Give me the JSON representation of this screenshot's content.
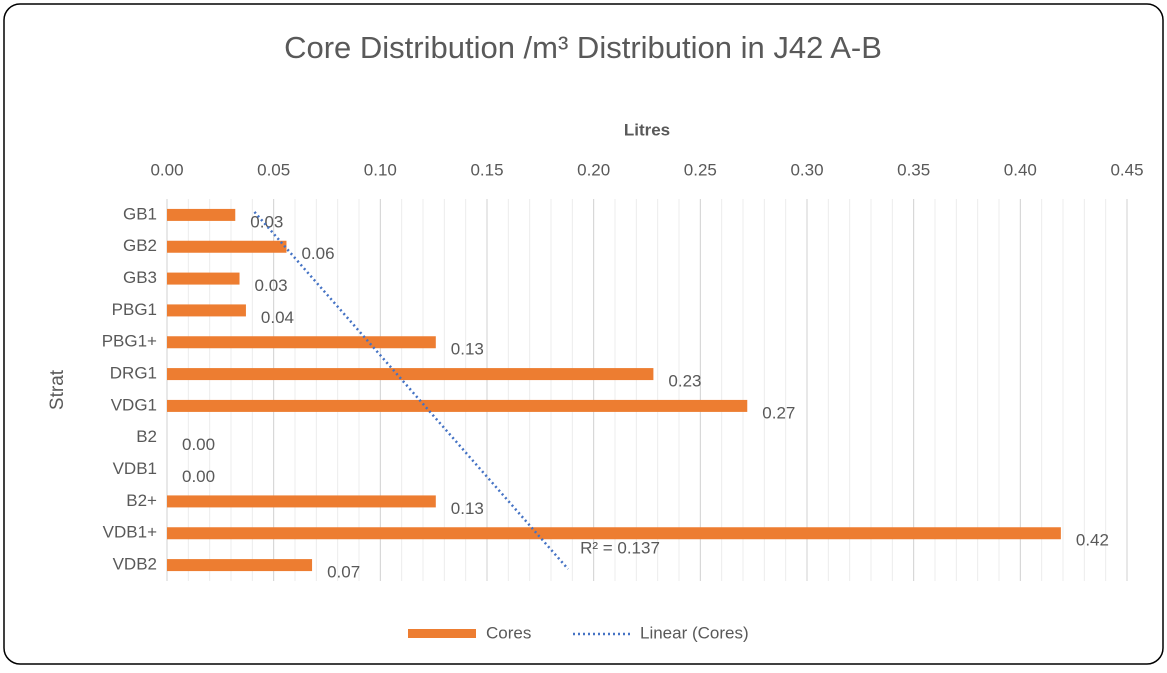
{
  "chart_data": {
    "type": "bar",
    "orientation": "horizontal",
    "title": "Core Distribution /m³ Distribution in J42 A-B",
    "x_label": "Litres",
    "y_label": "Strat",
    "categories": [
      "GB1",
      "GB2",
      "GB3",
      "PBG1",
      "PBG1+",
      "DRG1",
      "VDG1",
      "B2",
      "VDB1",
      "B2+",
      "VDB1+",
      "VDB2"
    ],
    "series": [
      {
        "name": "Cores",
        "color": "#ed7d31",
        "values": [
          0.032,
          0.056,
          0.034,
          0.037,
          0.126,
          0.228,
          0.272,
          0,
          0,
          0.126,
          0.419,
          0.068
        ],
        "value_labels": [
          "0.03",
          "0.06",
          "0.03",
          "0.04",
          "0.13",
          "0.23",
          "0.27",
          "0.00",
          "0.00",
          "0.13",
          "0.42",
          "0.07"
        ]
      }
    ],
    "trendline": {
      "name": "Linear (Cores)",
      "color": "#4472c4",
      "start": 0.041,
      "end": 0.188,
      "label": "R² = 0.137"
    },
    "xlim": [
      0,
      0.45
    ],
    "xticks": [
      {
        "value": 0,
        "label": "0.00"
      },
      {
        "value": 0.05,
        "label": "0.05"
      },
      {
        "value": 0.1,
        "label": "0.10"
      },
      {
        "value": 0.15,
        "label": "0.15"
      },
      {
        "value": 0.2,
        "label": "0.20"
      },
      {
        "value": 0.25,
        "label": "0.25"
      },
      {
        "value": 0.3,
        "label": "0.30"
      },
      {
        "value": 0.35,
        "label": "0.35"
      },
      {
        "value": 0.4,
        "label": "0.40"
      },
      {
        "value": 0.45,
        "label": "0.45"
      }
    ],
    "grid": true,
    "minor_grid": true,
    "legend": "bottom"
  }
}
